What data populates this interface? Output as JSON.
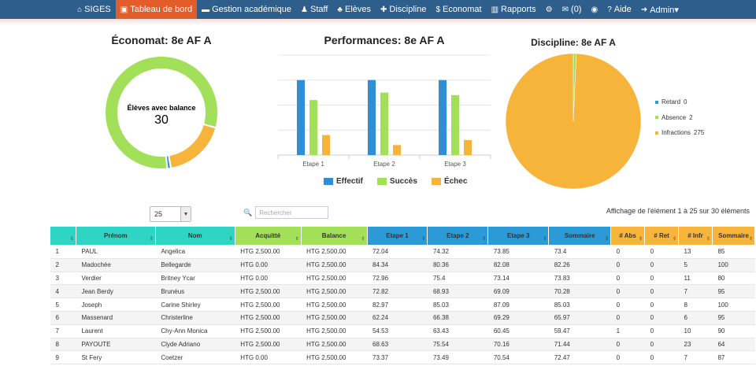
{
  "navbar": {
    "items": [
      {
        "icon": "home-icon",
        "glyph": "⌂",
        "label": "SIGES"
      },
      {
        "icon": "dashboard-icon",
        "glyph": "▣",
        "label": "Tableau de bord"
      },
      {
        "icon": "academic-icon",
        "glyph": "▬",
        "label": "Gestion académique"
      },
      {
        "icon": "staff-icon",
        "glyph": "♟",
        "label": "Staff"
      },
      {
        "icon": "students-icon",
        "glyph": "♣",
        "label": "Elèves"
      },
      {
        "icon": "discipline-icon",
        "glyph": "✚",
        "label": "Discipline"
      },
      {
        "icon": "money-icon",
        "glyph": "$",
        "label": "Economat"
      },
      {
        "icon": "reports-icon",
        "glyph": "▥",
        "label": "Rapports"
      },
      {
        "icon": "settings-icon",
        "glyph": "⚙",
        "label": ""
      },
      {
        "icon": "mail-icon",
        "glyph": "✉",
        "label": "(0)"
      },
      {
        "icon": "globe-icon",
        "glyph": "◉",
        "label": ""
      },
      {
        "icon": "help-icon",
        "glyph": "?",
        "label": "Aide"
      },
      {
        "icon": "user-icon",
        "glyph": "➜",
        "label": "Admin▾"
      }
    ]
  },
  "economat": {
    "title": "Économat: 8e AF A",
    "center_label": "Élèves avec balance",
    "center_value": "30",
    "segments": [
      {
        "name": "green",
        "value": 81,
        "color": "#a3e05a"
      },
      {
        "name": "orange",
        "value": 18,
        "color": "#f7b43a"
      },
      {
        "name": "blue",
        "value": 1,
        "color": "#2b9ad6"
      }
    ]
  },
  "chart_data": [
    {
      "type": "bar",
      "title": "Performances: 8e AF A",
      "categories": [
        "Etape 1",
        "Etape 2",
        "Etape 3"
      ],
      "series": [
        {
          "name": "Effectif",
          "values": [
            30,
            30,
            30
          ],
          "color": "#2f8fd6"
        },
        {
          "name": "Succès",
          "values": [
            22,
            25,
            24
          ],
          "color": "#a3e05a"
        },
        {
          "name": "Échec",
          "values": [
            8,
            4,
            6
          ],
          "color": "#f7b43a"
        }
      ],
      "ylim": [
        0,
        40
      ]
    },
    {
      "type": "pie",
      "title": "Discipline: 8e AF A",
      "slices": [
        {
          "label": "Retard",
          "value": 0,
          "color": "#2b9ad6"
        },
        {
          "label": "Absence",
          "value": 2,
          "color": "#a3e05a"
        },
        {
          "label": "Infractions",
          "value": 275,
          "color": "#f7b43a"
        }
      ]
    }
  ],
  "table_controls": {
    "page_size": "25",
    "search_placeholder": "Rechercher",
    "info": "Affichage de l'élément 1 à 25 sur 30 éléments"
  },
  "table": {
    "headers": [
      {
        "label": "",
        "color": "teal"
      },
      {
        "label": "Prénom",
        "color": "teal"
      },
      {
        "label": "Nom",
        "color": "teal"
      },
      {
        "label": "Acquitté",
        "color": "green"
      },
      {
        "label": "Balance",
        "color": "green"
      },
      {
        "label": "Etape 1",
        "color": "blue"
      },
      {
        "label": "Etape 2",
        "color": "blue"
      },
      {
        "label": "Etape 3",
        "color": "blue"
      },
      {
        "label": "Sommaire",
        "color": "blue"
      },
      {
        "label": "# Abs",
        "color": "orange"
      },
      {
        "label": "# Ret",
        "color": "orange"
      },
      {
        "label": "# Infr",
        "color": "orange"
      },
      {
        "label": "Sommaire",
        "color": "orange"
      }
    ],
    "rows": [
      {
        "cells": [
          "1",
          "PAUL",
          "Angelica",
          "HTG 2,500.00",
          "HTG 2,500.00",
          "72.04",
          "74.32",
          "73.85",
          "73.4",
          "0",
          "0",
          "13",
          "85"
        ],
        "neg": []
      },
      {
        "cells": [
          "2",
          "Madochée",
          "Bellegarde",
          "HTG 0.00",
          "HTG 2,500.00",
          "84.34",
          "80.36",
          "82.08",
          "82.26",
          "0",
          "0",
          "5",
          "100"
        ],
        "neg": []
      },
      {
        "cells": [
          "3",
          "Verdier",
          "Britney Ycar",
          "HTG 0.00",
          "HTG 2,500.00",
          "72.96",
          "75.4",
          "73.14",
          "73.83",
          "0",
          "0",
          "11",
          "80"
        ],
        "neg": []
      },
      {
        "cells": [
          "4",
          "Jean Berdy",
          "Brunéus",
          "HTG 2,500.00",
          "HTG 2,500.00",
          "72.82",
          "68.93",
          "69.09",
          "70.28",
          "0",
          "0",
          "7",
          "95"
        ],
        "neg": []
      },
      {
        "cells": [
          "5",
          "Joseph",
          "Carine Shirley",
          "HTG 2,500.00",
          "HTG 2,500.00",
          "82.97",
          "85.03",
          "87.09",
          "85.03",
          "0",
          "0",
          "8",
          "100"
        ],
        "neg": []
      },
      {
        "cells": [
          "6",
          "Massenard",
          "Christerline",
          "HTG 2,500.00",
          "HTG 2,500.00",
          "62.24",
          "66.38",
          "69.29",
          "65.97",
          "0",
          "0",
          "6",
          "95"
        ],
        "neg": [
          5
        ]
      },
      {
        "cells": [
          "7",
          "Laurent",
          "Chy-Ann Monica",
          "HTG 2,500.00",
          "HTG 2,500.00",
          "54.53",
          "63.43",
          "60.45",
          "59.47",
          "1",
          "0",
          "10",
          "90"
        ],
        "neg": [
          5,
          6,
          7,
          8
        ]
      },
      {
        "cells": [
          "8",
          "PAYOUTE",
          "Clyde Adriano",
          "HTG 2,500.00",
          "HTG 2,500.00",
          "68.63",
          "75.54",
          "70.16",
          "71.44",
          "0",
          "0",
          "23",
          "64"
        ],
        "neg": []
      },
      {
        "cells": [
          "9",
          "St Fery",
          "Coetzer",
          "HTG 0.00",
          "HTG 2,500.00",
          "73.37",
          "73.49",
          "70.54",
          "72.47",
          "0",
          "0",
          "7",
          "87"
        ],
        "neg": []
      }
    ]
  }
}
